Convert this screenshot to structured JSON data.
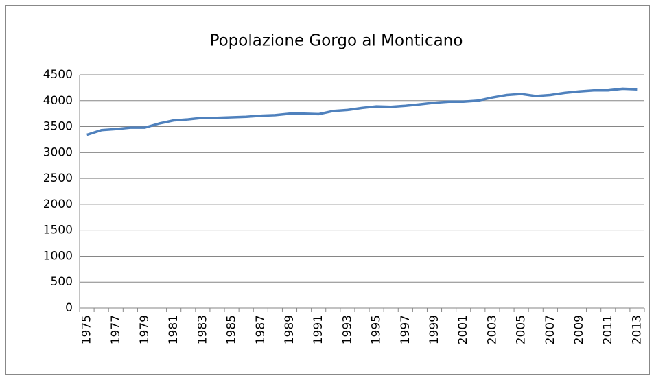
{
  "chart_data": {
    "type": "line",
    "title": "Popolazione Gorgo al Monticano",
    "categories": [
      "1975",
      null,
      "1977",
      null,
      "1979",
      null,
      "1981",
      null,
      "1983",
      null,
      "1985",
      null,
      "1987",
      null,
      "1989",
      null,
      "1991",
      null,
      "1993",
      null,
      "1995",
      null,
      "1997",
      null,
      "1999",
      null,
      "2001",
      null,
      "2003",
      null,
      "2005",
      null,
      "2007",
      null,
      "2009",
      null,
      "2011",
      null,
      "2013"
    ],
    "series": [
      {
        "name": "Popolazione",
        "color": "#4f81bd",
        "values": [
          3340,
          3430,
          3450,
          3480,
          3480,
          3560,
          3620,
          3640,
          3670,
          3670,
          3680,
          3690,
          3710,
          3720,
          3750,
          3750,
          3740,
          3800,
          3820,
          3860,
          3890,
          3880,
          3900,
          3930,
          3960,
          3980,
          3980,
          4000,
          4060,
          4110,
          4130,
          4090,
          4110,
          4150,
          4180,
          4200,
          4200,
          4230,
          4220
        ]
      }
    ],
    "ylim": [
      0,
      4500
    ],
    "yticks": [
      0,
      500,
      1000,
      1500,
      2000,
      2500,
      3000,
      3500,
      4000,
      4500
    ],
    "grid": true
  }
}
